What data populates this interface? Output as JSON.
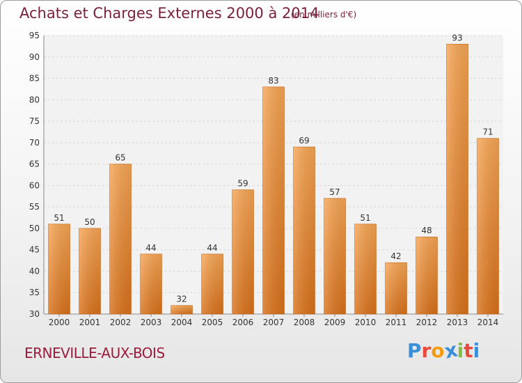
{
  "header": {
    "title": "Achats et Charges Externes 2000 à 2014",
    "subtitle": "(en milliers d'€)"
  },
  "footer": {
    "commune": "ERNEVILLE-AUX-BOIS",
    "logo_letters": [
      "P",
      "r",
      "o",
      "x",
      "i",
      "t",
      "i"
    ],
    "logo_colors": [
      "#3a8fd6",
      "#e84a3c",
      "#f39c12",
      "#3a8fd6",
      "#7cc142",
      "#e84a3c",
      "#3a8fd6"
    ]
  },
  "chart_data": {
    "type": "bar",
    "title": "Achats et Charges Externes 2000 à 2014",
    "subtitle": "(en milliers d'€)",
    "categories": [
      "2000",
      "2001",
      "2002",
      "2003",
      "2004",
      "2005",
      "2006",
      "2007",
      "2008",
      "2009",
      "2010",
      "2011",
      "2012",
      "2013",
      "2014"
    ],
    "values": [
      51,
      50,
      65,
      44,
      32,
      44,
      59,
      83,
      69,
      57,
      51,
      42,
      48,
      93,
      71
    ],
    "ylim": [
      30,
      95
    ],
    "yticks": [
      30,
      35,
      40,
      45,
      50,
      55,
      60,
      65,
      70,
      75,
      80,
      85,
      90,
      95
    ],
    "grid": true,
    "bar_color_top": "#f7a655",
    "bar_color_bottom": "#d9711a"
  }
}
